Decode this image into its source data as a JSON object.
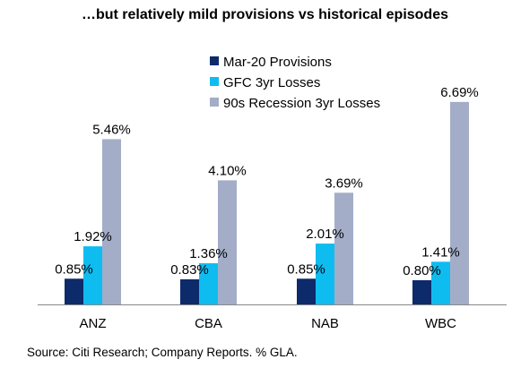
{
  "title": "…but relatively mild provisions vs historical episodes",
  "source": "Source: Citi Research; Company Reports. % GLA.",
  "chart_data": {
    "type": "bar",
    "categories": [
      "ANZ",
      "CBA",
      "NAB",
      "WBC"
    ],
    "series": [
      {
        "name": "Mar-20 Provisions",
        "color": "#0d2a6b",
        "values": [
          0.85,
          0.83,
          0.85,
          0.8
        ],
        "labels": [
          "0.85%",
          "0.83%",
          "0.85%",
          "0.80%"
        ]
      },
      {
        "name": "GFC 3yr Losses",
        "color": "#0fbcf0",
        "values": [
          1.92,
          1.36,
          2.01,
          1.41
        ],
        "labels": [
          "1.92%",
          "1.36%",
          "2.01%",
          "1.41%"
        ]
      },
      {
        "name": "90s Recession 3yr Losses",
        "color": "#a3adc8",
        "values": [
          5.46,
          4.1,
          3.69,
          6.69
        ],
        "labels": [
          "5.46%",
          "4.10%",
          "3.69%",
          "6.69%"
        ]
      }
    ],
    "ylim": [
      0,
      7.1
    ],
    "grid": false,
    "legend": "top-center"
  }
}
